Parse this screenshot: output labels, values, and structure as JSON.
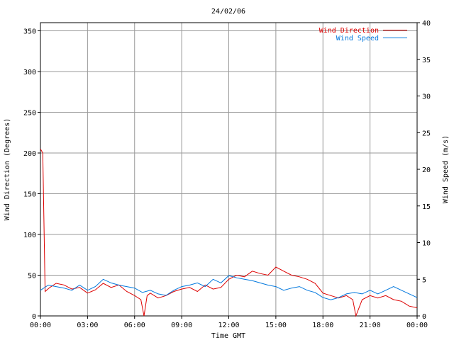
{
  "chart_data": {
    "type": "line",
    "title": "24/02/06",
    "xlabel": "Time GMT",
    "ylabel_left": "Wind Direction (Degrees)",
    "ylabel_right": "Wind Speed (m/s)",
    "x_ticks": [
      "00:00",
      "03:00",
      "06:00",
      "09:00",
      "12:00",
      "15:00",
      "18:00",
      "21:00",
      "00:00"
    ],
    "x_range_hours": [
      0,
      24
    ],
    "y_left_ticks": [
      0,
      50,
      100,
      150,
      200,
      250,
      300,
      350
    ],
    "y_left_range": [
      0,
      360
    ],
    "y_right_ticks": [
      0,
      5,
      10,
      15,
      20,
      25,
      30,
      35,
      40
    ],
    "y_right_range": [
      0,
      40
    ],
    "grid": true,
    "legend_position": "top-right",
    "colors": {
      "wind_direction": "#dd0000",
      "wind_speed": "#0077dd",
      "grid": "#999999"
    },
    "series": [
      {
        "name": "Wind Direction",
        "axis": "left",
        "x_hours": [
          0,
          0.15,
          0.3,
          0.6,
          1.0,
          1.5,
          2.0,
          2.5,
          3.0,
          3.5,
          4.0,
          4.5,
          5.0,
          5.5,
          6.0,
          6.4,
          6.6,
          6.8,
          7.0,
          7.5,
          8.0,
          8.5,
          9.0,
          9.5,
          10.0,
          10.5,
          11.0,
          11.5,
          12.0,
          12.5,
          13.0,
          13.5,
          14.0,
          14.5,
          15.0,
          15.5,
          16.0,
          16.5,
          17.0,
          17.5,
          18.0,
          18.5,
          19.0,
          19.5,
          19.9,
          20.1,
          20.5,
          21.0,
          21.5,
          22.0,
          22.5,
          23.0,
          23.5,
          24.0
        ],
        "y": [
          205,
          200,
          30,
          35,
          40,
          38,
          33,
          35,
          28,
          32,
          40,
          35,
          38,
          30,
          25,
          20,
          0,
          25,
          28,
          22,
          25,
          30,
          33,
          35,
          30,
          38,
          33,
          35,
          45,
          50,
          48,
          55,
          52,
          50,
          60,
          55,
          50,
          48,
          45,
          40,
          28,
          25,
          22,
          25,
          20,
          0,
          20,
          25,
          22,
          25,
          20,
          18,
          12,
          10
        ]
      },
      {
        "name": "Wind Speed",
        "axis": "right",
        "x_hours": [
          0,
          0.5,
          1.0,
          1.5,
          2.0,
          2.5,
          3.0,
          3.5,
          4.0,
          4.5,
          5.0,
          5.5,
          6.0,
          6.5,
          7.0,
          7.5,
          8.0,
          8.5,
          9.0,
          9.5,
          10.0,
          10.5,
          11.0,
          11.5,
          12.0,
          12.5,
          13.0,
          13.5,
          14.0,
          14.5,
          15.0,
          15.5,
          16.0,
          16.5,
          17.0,
          17.5,
          18.0,
          18.5,
          19.0,
          19.5,
          20.0,
          20.5,
          21.0,
          21.5,
          22.0,
          22.5,
          23.0,
          23.5,
          24.0
        ],
        "y": [
          3.5,
          4.2,
          4.0,
          3.8,
          3.5,
          4.2,
          3.5,
          4.0,
          5.0,
          4.5,
          4.2,
          4.0,
          3.8,
          3.2,
          3.5,
          3.0,
          2.8,
          3.5,
          4.0,
          4.2,
          4.5,
          4.0,
          5.0,
          4.5,
          5.5,
          5.2,
          5.0,
          4.8,
          4.5,
          4.2,
          4.0,
          3.5,
          3.8,
          4.0,
          3.5,
          3.2,
          2.5,
          2.2,
          2.5,
          3.0,
          3.2,
          3.0,
          3.5,
          3.0,
          3.5,
          4.0,
          3.5,
          3.0,
          2.5
        ]
      }
    ]
  }
}
